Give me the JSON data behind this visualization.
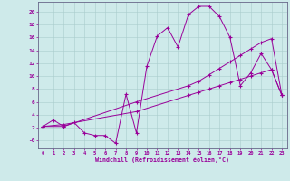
{
  "xlabel": "Windchill (Refroidissement éolien,°C)",
  "xlim": [
    -0.5,
    23.5
  ],
  "ylim": [
    -1.2,
    21.5
  ],
  "xticks": [
    0,
    1,
    2,
    3,
    4,
    5,
    6,
    7,
    8,
    9,
    10,
    11,
    12,
    13,
    14,
    15,
    16,
    17,
    18,
    19,
    20,
    21,
    22,
    23
  ],
  "yticks": [
    0,
    2,
    4,
    6,
    8,
    10,
    12,
    14,
    16,
    18,
    20
  ],
  "ytick_labels": [
    "-0",
    "2",
    "4",
    "6",
    "8",
    "10",
    "12",
    "14",
    "16",
    "18",
    "20"
  ],
  "background_color": "#ceeaea",
  "line_color": "#990099",
  "line1_x": [
    0,
    1,
    2,
    3,
    4,
    5,
    6,
    7,
    8,
    9,
    10,
    11,
    12,
    13,
    14,
    15,
    16,
    17,
    18,
    19,
    20,
    21,
    22,
    23
  ],
  "line1_y": [
    2.2,
    3.2,
    2.2,
    2.8,
    1.2,
    0.8,
    0.8,
    -0.4,
    7.2,
    1.2,
    11.5,
    16.2,
    17.5,
    14.5,
    19.5,
    20.8,
    20.8,
    19.2,
    16.0,
    8.5,
    10.5,
    13.5,
    11.0,
    7.0
  ],
  "line2_x": [
    0,
    2,
    9,
    14,
    15,
    16,
    17,
    18,
    19,
    20,
    21,
    22,
    23
  ],
  "line2_y": [
    2.2,
    2.5,
    4.5,
    7.0,
    7.5,
    8.0,
    8.5,
    9.0,
    9.5,
    10.0,
    10.5,
    11.0,
    7.0
  ],
  "line3_x": [
    0,
    2,
    9,
    14,
    15,
    16,
    17,
    18,
    19,
    20,
    21,
    22,
    23
  ],
  "line3_y": [
    2.2,
    2.2,
    6.0,
    8.5,
    9.2,
    10.2,
    11.2,
    12.2,
    13.2,
    14.2,
    15.2,
    15.8,
    7.0
  ]
}
